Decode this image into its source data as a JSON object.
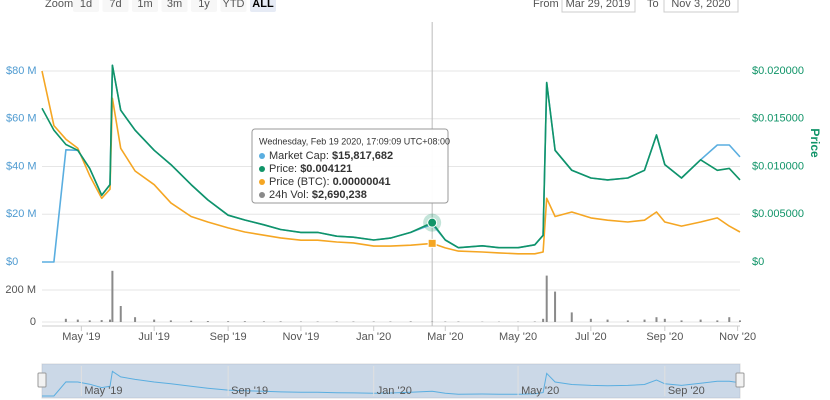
{
  "toolbar": {
    "zoom_label": "Zoom",
    "buttons": [
      "1d",
      "7d",
      "1m",
      "3m",
      "1y",
      "YTD",
      "ALL"
    ],
    "selected": 6,
    "from_label": "From",
    "from": "Mar 29, 2019",
    "to_label": "To",
    "to": "Nov 3, 2020"
  },
  "chart_data": {
    "type": "line",
    "y2_title": "Price",
    "x": [
      "2019-03-29",
      "2019-04-08",
      "2019-04-18",
      "2019-04-28",
      "2019-05-08",
      "2019-05-18",
      "2019-05-25",
      "2019-05-27",
      "2019-06-03",
      "2019-06-15",
      "2019-07-01",
      "2019-07-15",
      "2019-08-01",
      "2019-08-15",
      "2019-09-01",
      "2019-09-15",
      "2019-10-01",
      "2019-10-15",
      "2019-11-01",
      "2019-11-15",
      "2019-12-01",
      "2019-12-15",
      "2020-01-01",
      "2020-01-15",
      "2020-02-01",
      "2020-02-19",
      "2020-03-01",
      "2020-03-12",
      "2020-04-01",
      "2020-04-15",
      "2020-05-01",
      "2020-05-15",
      "2020-05-22",
      "2020-05-25",
      "2020-06-01",
      "2020-06-15",
      "2020-07-01",
      "2020-07-15",
      "2020-08-01",
      "2020-08-15",
      "2020-08-25",
      "2020-09-01",
      "2020-09-15",
      "2020-10-01",
      "2020-10-15",
      "2020-10-25",
      "2020-11-03"
    ],
    "xlim": [
      "2019-03-29",
      "2020-11-03"
    ],
    "xticks": [
      {
        "value": "2019-05-01",
        "label": "May '19"
      },
      {
        "value": "2019-07-01",
        "label": "Jul '19"
      },
      {
        "value": "2019-09-01",
        "label": "Sep '19"
      },
      {
        "value": "2019-11-01",
        "label": "Nov '19"
      },
      {
        "value": "2020-01-01",
        "label": "Jan '20"
      },
      {
        "value": "2020-03-01",
        "label": "Mar '20"
      },
      {
        "value": "2020-05-01",
        "label": "May '20"
      },
      {
        "value": "2020-07-01",
        "label": "Jul '20"
      },
      {
        "value": "2020-09-01",
        "label": "Sep '20"
      },
      {
        "value": "2020-11-01",
        "label": "Nov '20"
      }
    ],
    "navigator_ticks": [
      {
        "value": "2019-05-01",
        "label": "May '19"
      },
      {
        "value": "2019-09-01",
        "label": "Sep '19"
      },
      {
        "value": "2020-01-01",
        "label": "Jan '20"
      },
      {
        "value": "2020-05-01",
        "label": "May '20"
      },
      {
        "value": "2020-09-01",
        "label": "Sep '20"
      }
    ],
    "ylim": [
      0,
      80000000
    ],
    "yticks": [
      {
        "value": 0,
        "label": "$0"
      },
      {
        "value": 20000000,
        "label": "$20 M"
      },
      {
        "value": 40000000,
        "label": "$40 M"
      },
      {
        "value": 60000000,
        "label": "$60 M"
      },
      {
        "value": 80000000,
        "label": "$80 M"
      }
    ],
    "y2lim": [
      0,
      0.02
    ],
    "y2ticks": [
      {
        "value": 0,
        "label": "$0"
      },
      {
        "value": 0.005,
        "label": "$0.005000"
      },
      {
        "value": 0.01,
        "label": "$0.010000"
      },
      {
        "value": 0.015,
        "label": "$0.015000"
      },
      {
        "value": 0.02,
        "label": "$0.020000"
      }
    ],
    "y3lim": [
      0,
      4.2e-06
    ],
    "volume_ylim": [
      0,
      325000000
    ],
    "volume_yticks": [
      0,
      {
        "value": 200000000,
        "label": "200 M"
      }
    ],
    "grid": true,
    "series": [
      {
        "color": "#f5a623",
        "axis": "y3",
        "values": [
          4.2e-06,
          3e-06,
          2.7e-06,
          2.5e-06,
          1.9e-06,
          1.4e-06,
          1.6e-06,
          3.6e-06,
          2.5e-06,
          2e-06,
          1.7e-06,
          1.3e-06,
          1e-06,
          8.8e-07,
          7.5e-07,
          6.6e-07,
          5.9e-07,
          5.3e-07,
          4.8e-07,
          4.8e-07,
          4.4e-07,
          4.2e-07,
          3.5e-07,
          3.5e-07,
          3.7e-07,
          4.1e-07,
          3.1e-07,
          2.4e-07,
          2.2e-07,
          2e-07,
          1.8e-07,
          1.8e-07,
          2.2e-07,
          1.4e-06,
          1e-06,
          1.1e-06,
          9.7e-07,
          9.2e-07,
          8.8e-07,
          9.2e-07,
          1.1e-06,
          8.8e-07,
          7.9e-07,
          8.8e-07,
          9.7e-07,
          7.9e-07,
          6.6e-07
        ]
      },
      {
        "color": "#5aaee0",
        "axis": "y",
        "values": [
          0,
          0,
          47000000,
          46800000,
          39200000,
          28000000,
          32400000,
          82400000,
          63600000,
          55200000,
          46800000,
          40800000,
          32400000,
          26000000,
          19600000,
          17600000,
          15600000,
          13600000,
          12400000,
          12400000,
          10800000,
          10400000,
          9200000,
          10000000,
          12400000,
          15817682,
          9200000,
          6000000,
          6800000,
          6000000,
          6000000,
          7200000,
          11200000,
          75200000,
          46800000,
          38400000,
          35200000,
          34400000,
          35200000,
          38400000,
          53200000,
          40800000,
          35200000,
          42800000,
          49000000,
          49000000,
          44000000
        ]
      },
      {
        "color": "#109468",
        "axis": "y2",
        "values": [
          0.0161,
          0.0138,
          0.0123,
          0.0117,
          0.0098,
          0.007,
          0.0081,
          0.0206,
          0.0159,
          0.0138,
          0.0117,
          0.0102,
          0.0081,
          0.0065,
          0.0049,
          0.0044,
          0.0039,
          0.0034,
          0.0031,
          0.0031,
          0.0027,
          0.0026,
          0.0023,
          0.0025,
          0.0031,
          0.004121,
          0.0023,
          0.0015,
          0.0017,
          0.0015,
          0.0015,
          0.0018,
          0.0028,
          0.0188,
          0.0117,
          0.0096,
          0.0088,
          0.0086,
          0.0088,
          0.0096,
          0.0133,
          0.0102,
          0.0088,
          0.0107,
          0.0096,
          0.0098,
          0.0086
        ]
      },
      {
        "color": "#8a8a8a",
        "axis": "volume",
        "values": [
          0,
          0,
          20000000,
          15000000,
          10000000,
          12000000,
          15000000,
          320000000,
          100000000,
          30000000,
          15000000,
          10000000,
          8000000,
          6000000,
          5000000,
          5000000,
          4000000,
          4000000,
          3000000,
          3000000,
          3000000,
          3000000,
          3000000,
          3000000,
          4000000,
          2690238,
          3000000,
          3000000,
          2000000,
          2000000,
          2000000,
          3000000,
          20000000,
          290000000,
          190000000,
          60000000,
          20000000,
          15000000,
          10000000,
          15000000,
          30000000,
          20000000,
          10000000,
          15000000,
          10000000,
          30000000,
          10000000
        ]
      }
    ],
    "tooltip": {
      "header": "Wednesday, Feb 19 2020, 17:09:09 UTC+08:00",
      "x": "2020-02-19",
      "labels": [
        "Market Cap:",
        "Price:",
        "Price (BTC):",
        "24h Vol:"
      ],
      "series_index": [
        1,
        2,
        0,
        3
      ],
      "values": [
        15817682,
        0.004121,
        4.1e-07,
        2690238
      ],
      "value_labels": [
        "$15,817,682",
        "$0.004121",
        "0.00000041",
        "$2,690,238"
      ]
    }
  }
}
